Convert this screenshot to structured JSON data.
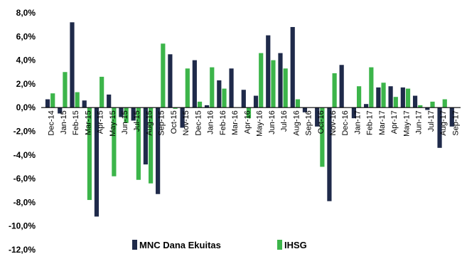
{
  "chart_data": {
    "type": "bar",
    "categories": [
      "Dec-14",
      "Jan-15",
      "Feb-15",
      "Mar-15",
      "Apr-15",
      "May-15",
      "Jun-15",
      "Jul-15",
      "Aug-15",
      "Sep-15",
      "Oct-15",
      "Nov-15",
      "Dec-15",
      "Jan-16",
      "Feb-16",
      "Mar-16",
      "Apr-16",
      "May-16",
      "Jun-16",
      "Jul-16",
      "Aug-16",
      "Sep-16",
      "Oct-16",
      "Nov-16",
      "Dec-16",
      "Jan-17",
      "Feb-17",
      "Mar-17",
      "Apr-17",
      "May-17",
      "Jun-17",
      "Jul-17",
      "Aug-17",
      "Sep-17"
    ],
    "series": [
      {
        "name": "MNC Dana Ekuitas",
        "color": "#1f2a4a",
        "values": [
          0.7,
          -0.5,
          7.2,
          0.6,
          -9.2,
          1.1,
          -0.8,
          -1.1,
          -4.8,
          -7.3,
          4.5,
          -1.7,
          4.0,
          0.2,
          2.3,
          3.3,
          1.5,
          1.0,
          6.1,
          4.6,
          6.8,
          -0.4,
          -1.6,
          -7.9,
          3.6,
          -0.9,
          0.3,
          1.7,
          1.8,
          1.7,
          1.0,
          -0.2,
          -3.4,
          -1.6
        ]
      },
      {
        "name": "IHSG",
        "color": "#3cb54a",
        "values": [
          1.2,
          3.0,
          1.3,
          -7.8,
          2.6,
          -5.8,
          -1.3,
          -6.1,
          -6.4,
          5.4,
          -0.1,
          3.3,
          0.5,
          3.4,
          1.6,
          0.0,
          -0.9,
          4.6,
          4.0,
          3.3,
          0.7,
          0.0,
          -5.0,
          2.9,
          0.0,
          1.8,
          3.4,
          2.1,
          0.9,
          1.6,
          0.2,
          0.5,
          0.7,
          0.0
        ]
      }
    ],
    "ylim": [
      -12,
      8
    ],
    "yticks": [
      "8,0%",
      "6,0%",
      "4,0%",
      "2,0%",
      "0,0%",
      "-2,0%",
      "-4,0%",
      "-6,0%",
      "-8,0%",
      "-10,0%",
      "-12,0%"
    ],
    "yticks_values": [
      8,
      6,
      4,
      2,
      0,
      -2,
      -4,
      -6,
      -8,
      -10,
      -12
    ],
    "xtick_labels": [
      "Dec-14",
      "Jan-15",
      "Feb-15",
      "Mar-15",
      "Apr-15",
      "May-15",
      "Jun-15",
      "Jul-15",
      "Aug-15",
      "Sep-15",
      "Oct-15",
      "Nov-15",
      "Dec-15",
      "Jan-16",
      "Feb-16",
      "Mar-16",
      "Apr-16",
      "May-16",
      "Jun-16",
      "Jul-16",
      "Aug-16",
      "Sep-16",
      "Oct-16",
      "Nov-16",
      "Dec-16",
      "Jan-17",
      "Feb-17",
      "Mar-17",
      "Apr-17",
      "May-17",
      "Jun-17",
      "Jul-17",
      "Aug-17",
      "Sep-17"
    ],
    "legend": [
      "MNC Dana Ekuitas",
      "IHSG"
    ],
    "legend_position": "bottom"
  }
}
